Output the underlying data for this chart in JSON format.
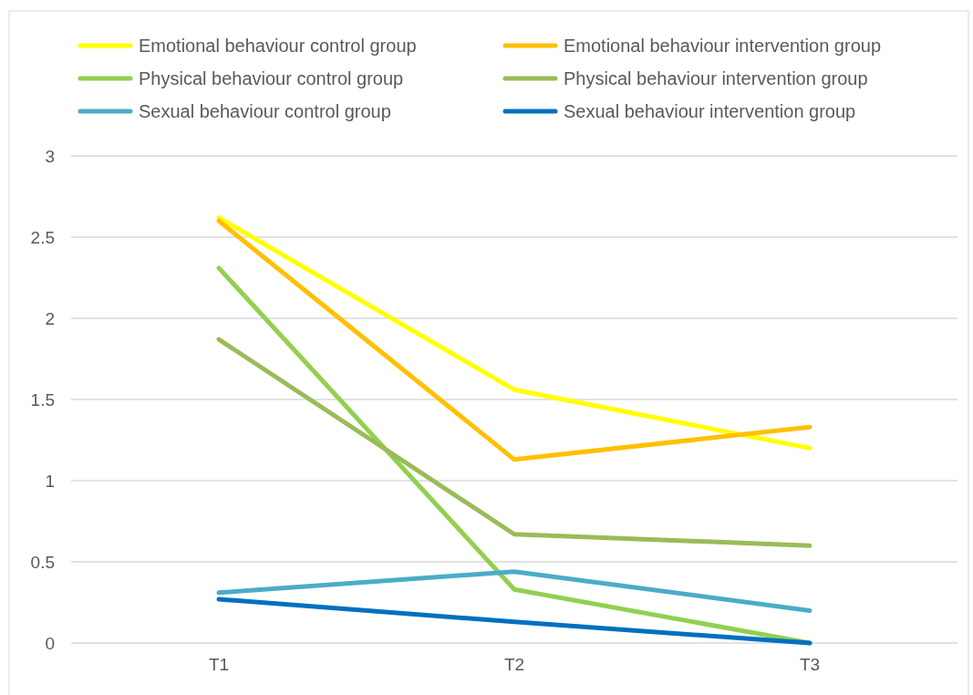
{
  "chart_data": {
    "type": "line",
    "categories": [
      "T1",
      "T2",
      "T3"
    ],
    "series": [
      {
        "name": "Emotional behaviour control group",
        "color": "#ffff00",
        "values": [
          2.62,
          1.56,
          1.2
        ]
      },
      {
        "name": "Emotional behaviour intervention group",
        "color": "#ffc000",
        "values": [
          2.6,
          1.13,
          1.33
        ]
      },
      {
        "name": "Physical behaviour control group",
        "color": "#92d050",
        "values": [
          2.31,
          0.33,
          0
        ]
      },
      {
        "name": "Physical behaviour intervention group",
        "color": "#9bbb59",
        "values": [
          1.87,
          0.67,
          0.6
        ]
      },
      {
        "name": "Sexual behaviour control group",
        "color": "#4bacc6",
        "values": [
          0.31,
          0.44,
          0.2
        ]
      },
      {
        "name": "Sexual behaviour intervention group",
        "color": "#0070c0",
        "values": [
          0.27,
          0.13,
          0
        ]
      }
    ],
    "ylim": [
      0,
      3
    ],
    "yticks": [
      0,
      0.5,
      1,
      1.5,
      2,
      2.5,
      3
    ],
    "grid": "y",
    "legend": "top",
    "marker": "none",
    "line_style": "solid"
  }
}
